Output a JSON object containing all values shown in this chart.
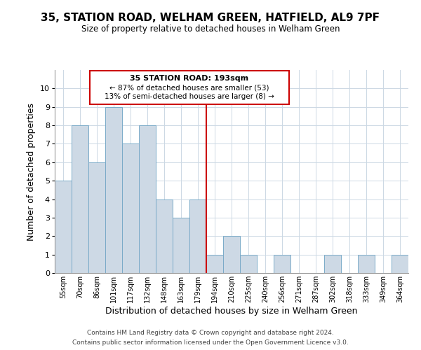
{
  "title": "35, STATION ROAD, WELHAM GREEN, HATFIELD, AL9 7PF",
  "subtitle": "Size of property relative to detached houses in Welham Green",
  "xlabel": "Distribution of detached houses by size in Welham Green",
  "ylabel": "Number of detached properties",
  "bar_labels": [
    "55sqm",
    "70sqm",
    "86sqm",
    "101sqm",
    "117sqm",
    "132sqm",
    "148sqm",
    "163sqm",
    "179sqm",
    "194sqm",
    "210sqm",
    "225sqm",
    "240sqm",
    "256sqm",
    "271sqm",
    "287sqm",
    "302sqm",
    "318sqm",
    "333sqm",
    "349sqm",
    "364sqm"
  ],
  "bar_values": [
    5,
    8,
    6,
    9,
    7,
    8,
    4,
    3,
    4,
    1,
    2,
    1,
    0,
    1,
    0,
    0,
    1,
    0,
    1,
    0,
    1
  ],
  "bar_color": "#cdd9e5",
  "bar_edge_color": "#7aaac8",
  "reference_line_index": 9,
  "reference_line_color": "#cc0000",
  "ylim": [
    0,
    11
  ],
  "yticks": [
    0,
    1,
    2,
    3,
    4,
    5,
    6,
    7,
    8,
    9,
    10,
    11
  ],
  "annotation_title": "35 STATION ROAD: 193sqm",
  "annotation_line1": "← 87% of detached houses are smaller (53)",
  "annotation_line2": "13% of semi-detached houses are larger (8) →",
  "annotation_box_color": "#ffffff",
  "annotation_box_edge": "#cc0000",
  "grid_color": "#ccd8e4",
  "footer1": "Contains HM Land Registry data © Crown copyright and database right 2024.",
  "footer2": "Contains public sector information licensed under the Open Government Licence v3.0."
}
